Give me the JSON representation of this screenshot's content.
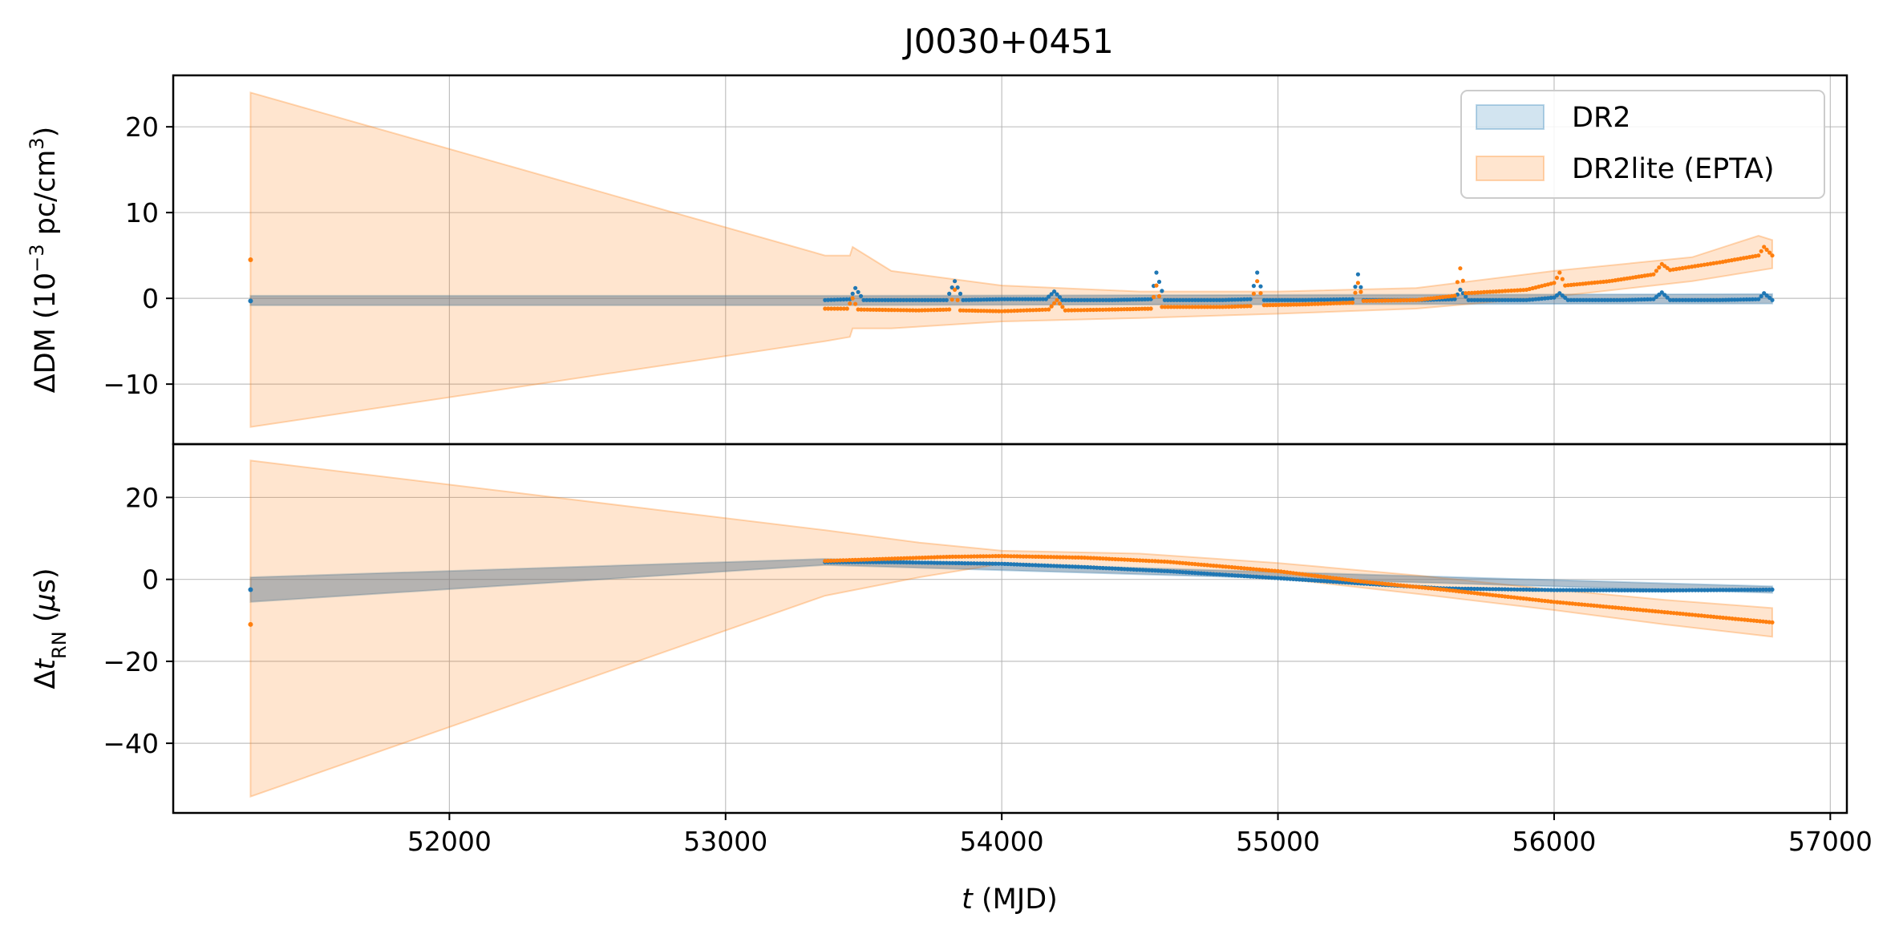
{
  "title": "J0030+0451",
  "chart_data": [
    {
      "type": "line",
      "panel": "top",
      "title": "J0030+0451",
      "xlabel": "",
      "ylabel": {
        "prefix": "ΔDM (10",
        "sup1": "−3",
        "mid": " pc/cm",
        "sup2": "3",
        "suffix": ")"
      },
      "xlim": [
        51000,
        57060
      ],
      "ylim": [
        -17,
        26
      ],
      "yticks": [
        20,
        10,
        0,
        -10
      ],
      "ytick_labels": [
        "20",
        "10",
        "0",
        "−10"
      ],
      "grid": true,
      "legend": {
        "location": "top-right",
        "entries": [
          {
            "name": "DR2",
            "color": "#1f77b4"
          },
          {
            "name": "DR2lite (EPTA)",
            "color": "#ff7f0e"
          }
        ]
      },
      "series": [
        {
          "name": "DR2",
          "color": "#1f77b4",
          "points": [
            [
              51280,
              -0.3
            ],
            [
              53360,
              -0.2
            ],
            [
              53450,
              -0.1
            ],
            [
              53470,
              1.2
            ],
            [
              53500,
              -0.2
            ],
            [
              53700,
              -0.2
            ],
            [
              53800,
              -0.2
            ],
            [
              53830,
              2.0
            ],
            [
              53860,
              -0.2
            ],
            [
              54000,
              -0.1
            ],
            [
              54160,
              -0.1
            ],
            [
              54190,
              0.8
            ],
            [
              54220,
              -0.2
            ],
            [
              54400,
              -0.2
            ],
            [
              54540,
              -0.1
            ],
            [
              54560,
              3.0
            ],
            [
              54590,
              -0.2
            ],
            [
              54800,
              -0.2
            ],
            [
              54900,
              -0.1
            ],
            [
              54925,
              3.0
            ],
            [
              54950,
              -0.2
            ],
            [
              55100,
              -0.2
            ],
            [
              55270,
              -0.1
            ],
            [
              55290,
              2.8
            ],
            [
              55310,
              -0.2
            ],
            [
              55500,
              -0.2
            ],
            [
              55640,
              -0.1
            ],
            [
              55660,
              1.0
            ],
            [
              55690,
              -0.2
            ],
            [
              55900,
              -0.2
            ],
            [
              56000,
              0.1
            ],
            [
              56020,
              0.6
            ],
            [
              56050,
              -0.2
            ],
            [
              56250,
              -0.2
            ],
            [
              56360,
              -0.1
            ],
            [
              56390,
              0.7
            ],
            [
              56420,
              -0.2
            ],
            [
              56600,
              -0.2
            ],
            [
              56740,
              -0.1
            ],
            [
              56760,
              0.6
            ],
            [
              56790,
              -0.2
            ]
          ],
          "band_lower": [
            [
              51280,
              -0.8
            ],
            [
              53360,
              -0.8
            ],
            [
              56790,
              -0.6
            ]
          ],
          "band_upper": [
            [
              51280,
              0.3
            ],
            [
              53360,
              0.3
            ],
            [
              56790,
              0.5
            ]
          ]
        },
        {
          "name": "DR2lite (EPTA)",
          "color": "#ff7f0e",
          "points": [
            [
              51280,
              4.5
            ],
            [
              53360,
              -1.2
            ],
            [
              53440,
              -1.2
            ],
            [
              53460,
              0.0
            ],
            [
              53480,
              -1.3
            ],
            [
              53700,
              -1.4
            ],
            [
              53810,
              -1.3
            ],
            [
              53830,
              1.0
            ],
            [
              53850,
              -1.4
            ],
            [
              54000,
              -1.5
            ],
            [
              54170,
              -1.3
            ],
            [
              54200,
              -0.2
            ],
            [
              54230,
              -1.4
            ],
            [
              54400,
              -1.3
            ],
            [
              54540,
              -1.2
            ],
            [
              54560,
              1.5
            ],
            [
              54580,
              -1.0
            ],
            [
              54800,
              -1.0
            ],
            [
              54900,
              -0.9
            ],
            [
              54925,
              2.0
            ],
            [
              54950,
              -0.8
            ],
            [
              55100,
              -0.7
            ],
            [
              55270,
              -0.5
            ],
            [
              55290,
              1.8
            ],
            [
              55310,
              -0.3
            ],
            [
              55500,
              -0.2
            ],
            [
              55640,
              0.3
            ],
            [
              55660,
              3.5
            ],
            [
              55680,
              0.6
            ],
            [
              55900,
              1.0
            ],
            [
              56000,
              1.8
            ],
            [
              56020,
              3.0
            ],
            [
              56040,
              1.5
            ],
            [
              56200,
              2.0
            ],
            [
              56360,
              2.8
            ],
            [
              56390,
              4.0
            ],
            [
              56420,
              3.3
            ],
            [
              56600,
              4.2
            ],
            [
              56740,
              5.0
            ],
            [
              56760,
              6.0
            ],
            [
              56790,
              5.0
            ]
          ],
          "band_lower": [
            [
              51280,
              -15
            ],
            [
              53360,
              -5
            ],
            [
              53450,
              -4.5
            ],
            [
              53460,
              -3.5
            ],
            [
              53600,
              -3.5
            ],
            [
              54000,
              -2.7
            ],
            [
              54500,
              -2.3
            ],
            [
              55000,
              -1.8
            ],
            [
              55500,
              -1.2
            ],
            [
              56000,
              0.2
            ],
            [
              56500,
              2.0
            ],
            [
              56790,
              3.5
            ]
          ],
          "band_upper": [
            [
              51280,
              24
            ],
            [
              53360,
              5
            ],
            [
              53450,
              5
            ],
            [
              53460,
              6.0
            ],
            [
              53600,
              3.2
            ],
            [
              54000,
              1.5
            ],
            [
              54500,
              0.8
            ],
            [
              55000,
              0.8
            ],
            [
              55500,
              1.2
            ],
            [
              56000,
              3.2
            ],
            [
              56500,
              4.8
            ],
            [
              56740,
              7.3
            ],
            [
              56790,
              6.8
            ]
          ]
        }
      ]
    },
    {
      "type": "line",
      "panel": "bottom",
      "xlabel": {
        "var": "t",
        "rest": " (MJD)"
      },
      "ylabel": {
        "prefix": "Δ",
        "var": "t",
        "sub": "RN",
        "mid": " (",
        "mu": "μ",
        "suffix": "s)"
      },
      "xlim": [
        51000,
        57060
      ],
      "ylim": [
        -57,
        33
      ],
      "xticks": [
        52000,
        53000,
        54000,
        55000,
        56000,
        57000
      ],
      "xtick_labels": [
        "52000",
        "53000",
        "54000",
        "55000",
        "56000",
        "57000"
      ],
      "yticks": [
        20,
        0,
        -20,
        -40
      ],
      "ytick_labels": [
        "20",
        "0",
        "−20",
        "−40"
      ],
      "grid": true,
      "series": [
        {
          "name": "DR2",
          "color": "#1f77b4",
          "points": [
            [
              51280,
              -2.5
            ],
            [
              53360,
              4.2
            ],
            [
              53600,
              4.2
            ],
            [
              54000,
              3.8
            ],
            [
              54300,
              3.0
            ],
            [
              54600,
              2.0
            ],
            [
              55000,
              0.3
            ],
            [
              55300,
              -1.0
            ],
            [
              55600,
              -2.2
            ],
            [
              56000,
              -2.6
            ],
            [
              56400,
              -2.7
            ],
            [
              56790,
              -2.5
            ]
          ],
          "band_lower": [
            [
              51280,
              -5.5
            ],
            [
              53360,
              3.5
            ],
            [
              56790,
              -3.3
            ]
          ],
          "band_upper": [
            [
              51280,
              0.5
            ],
            [
              53360,
              5.0
            ],
            [
              56790,
              -1.7
            ]
          ]
        },
        {
          "name": "DR2lite (EPTA)",
          "color": "#ff7f0e",
          "points": [
            [
              51280,
              -11
            ],
            [
              53360,
              4.5
            ],
            [
              53800,
              5.5
            ],
            [
              54000,
              5.7
            ],
            [
              54300,
              5.3
            ],
            [
              54600,
              4.3
            ],
            [
              55000,
              2.0
            ],
            [
              55300,
              -0.5
            ],
            [
              55600,
              -2.5
            ],
            [
              56000,
              -5.5
            ],
            [
              56400,
              -8.0
            ],
            [
              56790,
              -10.5
            ]
          ],
          "band_lower": [
            [
              51280,
              -53
            ],
            [
              53360,
              -4
            ],
            [
              53700,
              0.5
            ],
            [
              54000,
              3.8
            ],
            [
              54500,
              2.5
            ],
            [
              55000,
              0.3
            ],
            [
              55500,
              -3.5
            ],
            [
              56000,
              -7.5
            ],
            [
              56400,
              -11
            ],
            [
              56790,
              -14
            ]
          ],
          "band_upper": [
            [
              51280,
              29
            ],
            [
              53360,
              12
            ],
            [
              53700,
              9.0
            ],
            [
              54000,
              7.0
            ],
            [
              54500,
              6.3
            ],
            [
              55000,
              4.0
            ],
            [
              55500,
              1.0
            ],
            [
              56000,
              -2.5
            ],
            [
              56400,
              -5.0
            ],
            [
              56790,
              -7.0
            ]
          ]
        }
      ]
    }
  ]
}
